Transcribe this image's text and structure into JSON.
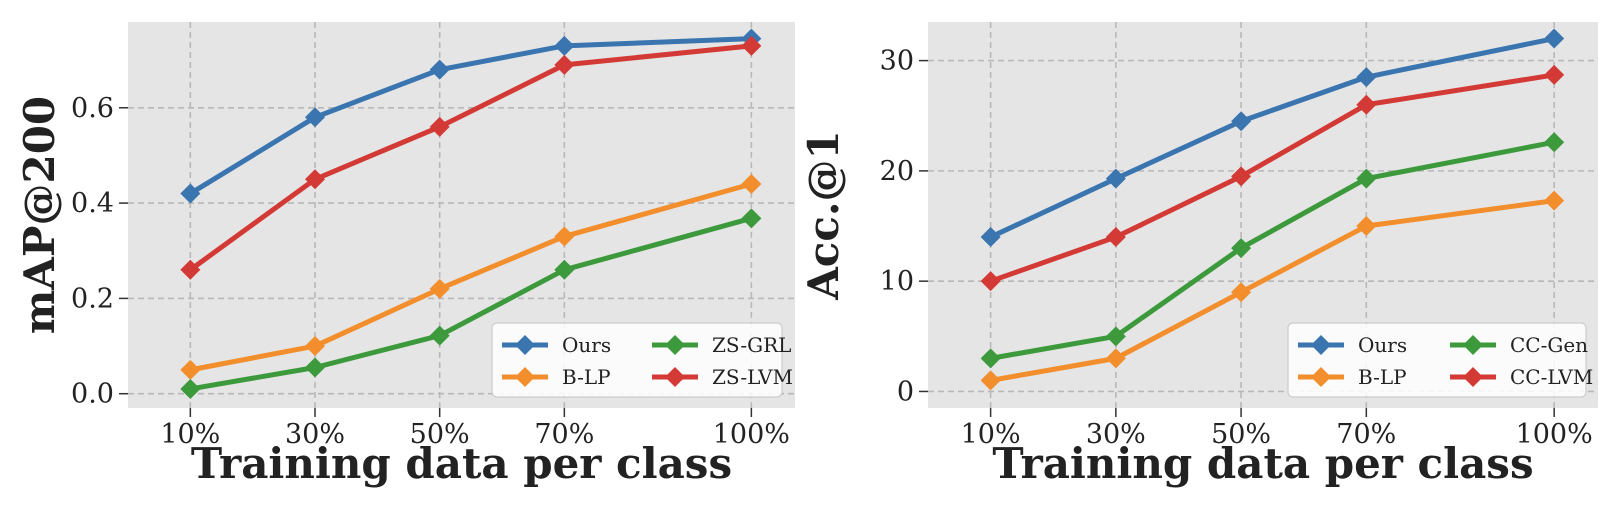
{
  "chart_data": [
    {
      "type": "line",
      "x": [
        "10%",
        "30%",
        "50%",
        "70%",
        "100%"
      ],
      "x_values": [
        10,
        30,
        50,
        70,
        100
      ],
      "xlabel": "Training data per class",
      "ylabel": "mAP@200",
      "ylim": [
        -0.03,
        0.78
      ],
      "xlim": [
        0,
        107
      ],
      "yticks": [
        0.0,
        0.2,
        0.4,
        0.6
      ],
      "ytick_labels": [
        "0.0",
        "0.2",
        "0.4",
        "0.6"
      ],
      "grid": true,
      "legend_position": "lower-right",
      "series": [
        {
          "name": "Ours",
          "color": "#3a75b0",
          "values": [
            0.42,
            0.58,
            0.68,
            0.73,
            0.745
          ]
        },
        {
          "name": "B-LP",
          "color": "#f28e2b",
          "values": [
            0.05,
            0.1,
            0.22,
            0.33,
            0.44
          ]
        },
        {
          "name": "ZS-GRL",
          "color": "#3c9a3c",
          "values": [
            0.01,
            0.055,
            0.122,
            0.26,
            0.368
          ]
        },
        {
          "name": "ZS-LVM",
          "color": "#d33a35",
          "values": [
            0.26,
            0.45,
            0.56,
            0.69,
            0.73
          ]
        }
      ]
    },
    {
      "type": "line",
      "x": [
        "10%",
        "30%",
        "50%",
        "70%",
        "100%"
      ],
      "x_values": [
        10,
        30,
        50,
        70,
        100
      ],
      "xlabel": "Training data per class",
      "ylabel": "Acc.@1",
      "ylim": [
        -1.5,
        33.5
      ],
      "xlim": [
        0,
        107
      ],
      "yticks": [
        0,
        10,
        20,
        30
      ],
      "ytick_labels": [
        "0",
        "10",
        "20",
        "30"
      ],
      "grid": true,
      "legend_position": "lower-right",
      "series": [
        {
          "name": "Ours",
          "color": "#3a75b0",
          "values": [
            14,
            19.3,
            24.5,
            28.5,
            32
          ]
        },
        {
          "name": "B-LP",
          "color": "#f28e2b",
          "values": [
            1,
            3,
            9,
            15,
            17.3
          ]
        },
        {
          "name": "CC-Gen",
          "color": "#3c9a3c",
          "values": [
            3,
            5,
            13,
            19.3,
            22.6
          ]
        },
        {
          "name": "CC-LVM",
          "color": "#d33a35",
          "values": [
            10,
            14,
            19.5,
            26,
            28.7
          ]
        }
      ]
    }
  ]
}
